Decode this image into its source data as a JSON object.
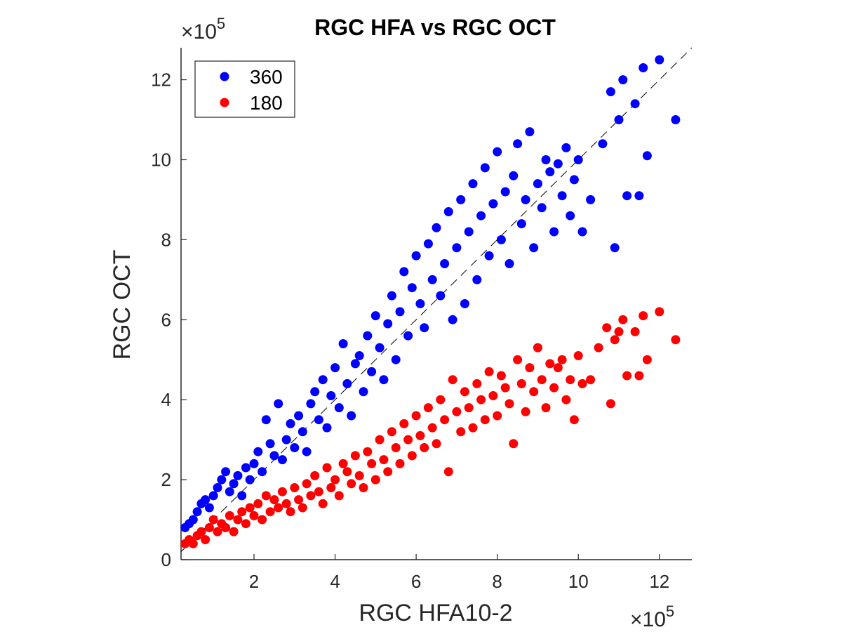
{
  "chart_data": {
    "type": "scatter",
    "title": "RGC HFA vs RGC OCT",
    "xlabel": "RGC HFA10-2",
    "ylabel": "RGC OCT",
    "axis_multiplier_label": "×10",
    "axis_multiplier_exponent": "5",
    "xlim": [
      0.2,
      12.8
    ],
    "ylim": [
      0,
      12.8
    ],
    "xticks": [
      2,
      4,
      6,
      8,
      10,
      12
    ],
    "yticks": [
      0,
      2,
      4,
      6,
      8,
      10,
      12
    ],
    "grid": false,
    "legend_placement": "top-left",
    "reference_line": {
      "style": "dashed",
      "slope": 1,
      "color": "#000000"
    },
    "series": [
      {
        "name": "360",
        "color": "#0000ff",
        "points": [
          [
            0.3,
            0.8
          ],
          [
            0.4,
            0.9
          ],
          [
            0.5,
            1.0
          ],
          [
            0.6,
            1.2
          ],
          [
            0.7,
            1.4
          ],
          [
            0.8,
            1.5
          ],
          [
            0.9,
            1.3
          ],
          [
            1.0,
            1.6
          ],
          [
            1.1,
            1.8
          ],
          [
            1.2,
            2.0
          ],
          [
            1.3,
            2.2
          ],
          [
            1.4,
            1.7
          ],
          [
            1.5,
            1.9
          ],
          [
            1.6,
            2.1
          ],
          [
            1.7,
            1.6
          ],
          [
            1.8,
            2.3
          ],
          [
            1.9,
            2.0
          ],
          [
            2.0,
            2.4
          ],
          [
            2.1,
            2.7
          ],
          [
            2.2,
            2.2
          ],
          [
            2.3,
            3.5
          ],
          [
            2.4,
            2.9
          ],
          [
            2.5,
            2.6
          ],
          [
            2.6,
            3.9
          ],
          [
            2.7,
            2.5
          ],
          [
            2.8,
            3.0
          ],
          [
            2.9,
            3.4
          ],
          [
            3.0,
            2.8
          ],
          [
            3.1,
            3.6
          ],
          [
            3.2,
            3.2
          ],
          [
            3.3,
            2.7
          ],
          [
            3.4,
            3.9
          ],
          [
            3.5,
            4.2
          ],
          [
            3.6,
            3.5
          ],
          [
            3.7,
            4.5
          ],
          [
            3.8,
            3.3
          ],
          [
            3.9,
            4.1
          ],
          [
            4.0,
            4.8
          ],
          [
            4.1,
            3.8
          ],
          [
            4.2,
            5.4
          ],
          [
            4.3,
            4.4
          ],
          [
            4.4,
            3.6
          ],
          [
            4.5,
            4.9
          ],
          [
            4.6,
            5.1
          ],
          [
            4.7,
            4.2
          ],
          [
            4.8,
            5.6
          ],
          [
            4.9,
            4.7
          ],
          [
            5.0,
            6.1
          ],
          [
            5.1,
            5.3
          ],
          [
            5.2,
            4.5
          ],
          [
            5.3,
            5.9
          ],
          [
            5.4,
            6.6
          ],
          [
            5.5,
            5.0
          ],
          [
            5.6,
            6.2
          ],
          [
            5.7,
            7.2
          ],
          [
            5.8,
            5.6
          ],
          [
            5.9,
            6.8
          ],
          [
            6.0,
            7.6
          ],
          [
            6.1,
            6.4
          ],
          [
            6.2,
            5.8
          ],
          [
            6.3,
            7.9
          ],
          [
            6.4,
            7.0
          ],
          [
            6.5,
            8.3
          ],
          [
            6.6,
            6.6
          ],
          [
            6.7,
            7.4
          ],
          [
            6.8,
            8.7
          ],
          [
            6.9,
            6.0
          ],
          [
            7.0,
            7.8
          ],
          [
            7.1,
            9.0
          ],
          [
            7.2,
            6.4
          ],
          [
            7.3,
            8.2
          ],
          [
            7.4,
            9.4
          ],
          [
            7.5,
            7.0
          ],
          [
            7.6,
            8.6
          ],
          [
            7.7,
            9.8
          ],
          [
            7.8,
            7.6
          ],
          [
            7.9,
            8.9
          ],
          [
            8.0,
            10.2
          ],
          [
            8.1,
            8.0
          ],
          [
            8.2,
            9.2
          ],
          [
            8.3,
            7.4
          ],
          [
            8.4,
            9.6
          ],
          [
            8.5,
            10.4
          ],
          [
            8.6,
            8.4
          ],
          [
            8.7,
            9.0
          ],
          [
            8.8,
            10.7
          ],
          [
            8.9,
            7.8
          ],
          [
            9.0,
            9.4
          ],
          [
            9.1,
            8.8
          ],
          [
            9.2,
            10.0
          ],
          [
            9.3,
            9.7
          ],
          [
            9.4,
            8.2
          ],
          [
            9.5,
            9.9
          ],
          [
            9.6,
            9.1
          ],
          [
            9.7,
            10.3
          ],
          [
            9.8,
            8.6
          ],
          [
            9.9,
            9.5
          ],
          [
            10.0,
            10.0
          ],
          [
            10.1,
            8.2
          ],
          [
            10.3,
            9.0
          ],
          [
            10.6,
            10.4
          ],
          [
            10.8,
            11.7
          ],
          [
            10.9,
            7.8
          ],
          [
            11.0,
            11.0
          ],
          [
            11.1,
            12.0
          ],
          [
            11.2,
            9.1
          ],
          [
            11.4,
            11.4
          ],
          [
            11.6,
            12.3
          ],
          [
            11.7,
            10.1
          ],
          [
            12.0,
            12.5
          ],
          [
            12.4,
            11.0
          ],
          [
            11.5,
            9.1
          ]
        ]
      },
      {
        "name": "180",
        "color": "#ff0000",
        "points": [
          [
            0.3,
            0.4
          ],
          [
            0.4,
            0.5
          ],
          [
            0.5,
            0.4
          ],
          [
            0.6,
            0.6
          ],
          [
            0.7,
            0.7
          ],
          [
            0.8,
            0.5
          ],
          [
            0.9,
            0.8
          ],
          [
            1.0,
            1.0
          ],
          [
            1.1,
            0.7
          ],
          [
            1.2,
            0.9
          ],
          [
            1.3,
            0.8
          ],
          [
            1.4,
            1.1
          ],
          [
            1.5,
            0.7
          ],
          [
            1.6,
            1.0
          ],
          [
            1.7,
            1.2
          ],
          [
            1.8,
            0.9
          ],
          [
            1.9,
            1.3
          ],
          [
            2.0,
            1.1
          ],
          [
            2.1,
            1.4
          ],
          [
            2.2,
            1.0
          ],
          [
            2.3,
            1.6
          ],
          [
            2.4,
            1.2
          ],
          [
            2.5,
            1.5
          ],
          [
            2.6,
            1.3
          ],
          [
            2.7,
            1.7
          ],
          [
            2.8,
            1.4
          ],
          [
            2.9,
            1.2
          ],
          [
            3.0,
            1.8
          ],
          [
            3.1,
            1.5
          ],
          [
            3.2,
            1.3
          ],
          [
            3.3,
            1.9
          ],
          [
            3.4,
            1.6
          ],
          [
            3.5,
            2.1
          ],
          [
            3.6,
            1.7
          ],
          [
            3.7,
            1.4
          ],
          [
            3.8,
            2.3
          ],
          [
            3.9,
            1.8
          ],
          [
            4.0,
            2.0
          ],
          [
            4.1,
            1.6
          ],
          [
            4.2,
            2.4
          ],
          [
            4.3,
            2.2
          ],
          [
            4.4,
            1.9
          ],
          [
            4.5,
            2.6
          ],
          [
            4.6,
            2.1
          ],
          [
            4.7,
            1.8
          ],
          [
            4.8,
            2.7
          ],
          [
            4.9,
            2.4
          ],
          [
            5.0,
            2.0
          ],
          [
            5.1,
            3.0
          ],
          [
            5.2,
            2.5
          ],
          [
            5.3,
            2.2
          ],
          [
            5.4,
            3.2
          ],
          [
            5.5,
            2.8
          ],
          [
            5.6,
            2.4
          ],
          [
            5.7,
            3.4
          ],
          [
            5.8,
            3.0
          ],
          [
            5.9,
            2.6
          ],
          [
            6.0,
            3.6
          ],
          [
            6.1,
            3.1
          ],
          [
            6.2,
            2.8
          ],
          [
            6.3,
            3.8
          ],
          [
            6.4,
            3.3
          ],
          [
            6.5,
            2.9
          ],
          [
            6.6,
            4.0
          ],
          [
            6.7,
            3.5
          ],
          [
            6.8,
            2.2
          ],
          [
            6.9,
            4.5
          ],
          [
            7.0,
            3.7
          ],
          [
            7.1,
            3.2
          ],
          [
            7.2,
            4.2
          ],
          [
            7.3,
            3.8
          ],
          [
            7.4,
            3.3
          ],
          [
            7.5,
            4.4
          ],
          [
            7.6,
            4.0
          ],
          [
            7.7,
            3.5
          ],
          [
            7.8,
            4.7
          ],
          [
            7.9,
            4.1
          ],
          [
            8.0,
            3.6
          ],
          [
            8.1,
            4.6
          ],
          [
            8.2,
            4.3
          ],
          [
            8.3,
            3.9
          ],
          [
            8.4,
            2.9
          ],
          [
            8.5,
            5.0
          ],
          [
            8.6,
            4.4
          ],
          [
            8.7,
            3.7
          ],
          [
            8.8,
            4.8
          ],
          [
            8.9,
            4.2
          ],
          [
            9.0,
            5.3
          ],
          [
            9.1,
            4.5
          ],
          [
            9.2,
            3.8
          ],
          [
            9.3,
            4.9
          ],
          [
            9.4,
            4.3
          ],
          [
            9.5,
            4.8
          ],
          [
            9.6,
            5.0
          ],
          [
            9.7,
            4.0
          ],
          [
            9.8,
            4.5
          ],
          [
            9.9,
            3.5
          ],
          [
            10.0,
            5.1
          ],
          [
            10.1,
            4.4
          ],
          [
            10.3,
            4.5
          ],
          [
            10.5,
            5.3
          ],
          [
            10.7,
            5.8
          ],
          [
            10.8,
            3.9
          ],
          [
            10.9,
            5.5
          ],
          [
            11.0,
            5.7
          ],
          [
            11.1,
            6.0
          ],
          [
            11.2,
            4.6
          ],
          [
            11.4,
            5.7
          ],
          [
            11.5,
            4.6
          ],
          [
            11.6,
            6.1
          ],
          [
            11.7,
            5.0
          ],
          [
            12.0,
            6.2
          ],
          [
            12.4,
            5.5
          ]
        ]
      }
    ]
  }
}
